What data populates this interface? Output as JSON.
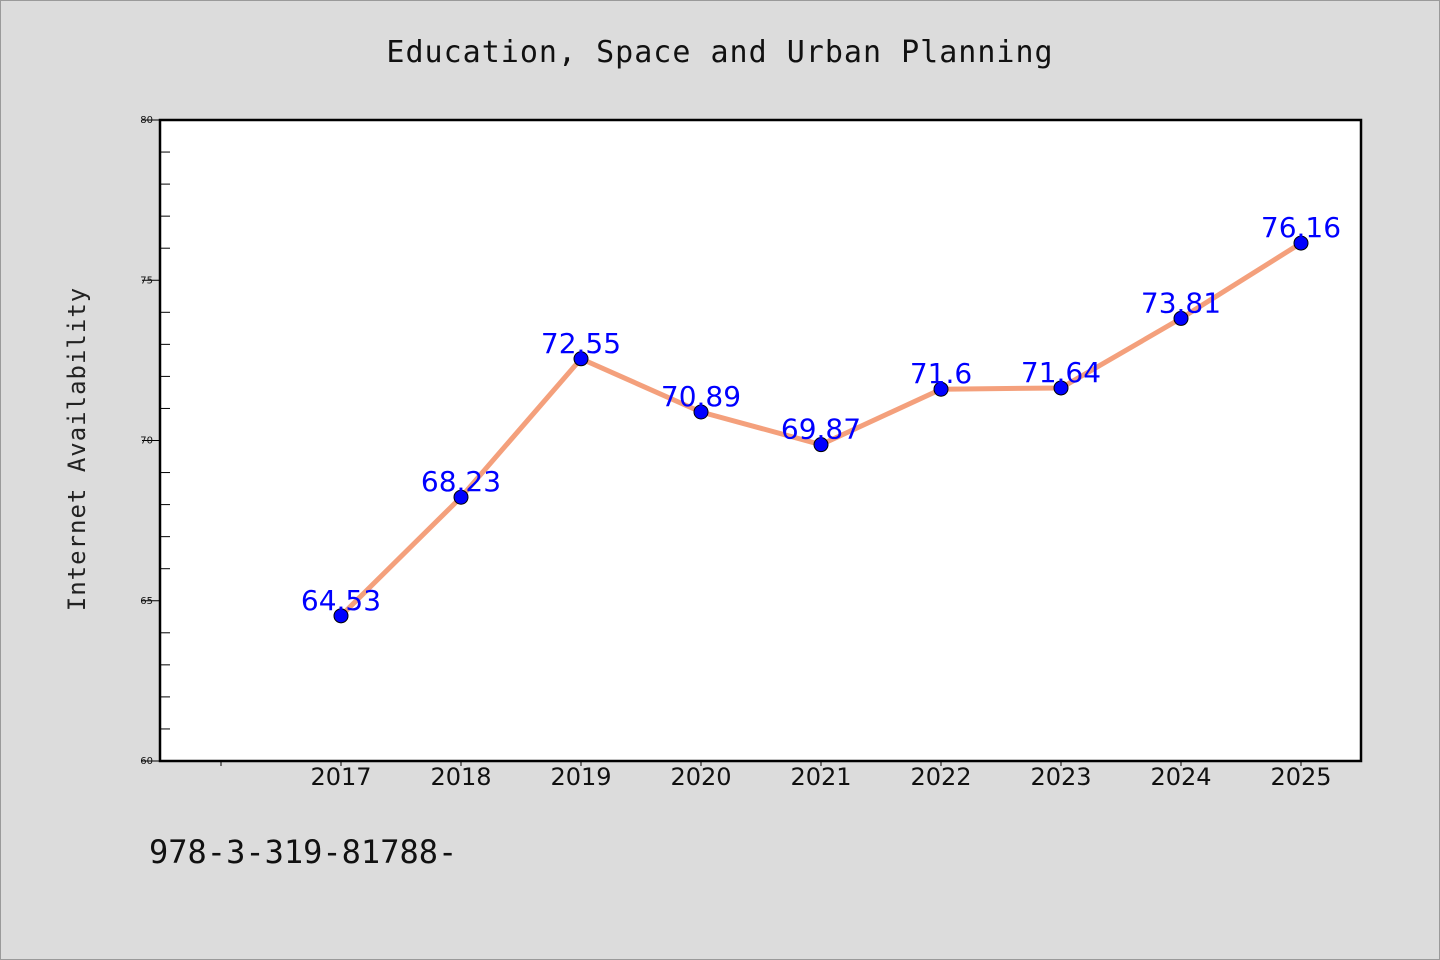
{
  "title": "Education, Space and Urban Planning",
  "footer_text": "978-3-319-81788-",
  "chart_data": {
    "type": "line",
    "title": "Education, Space and Urban Planning",
    "xlabel": "",
    "ylabel": "Internet Availability",
    "categories": [
      "2017",
      "2018",
      "2019",
      "2020",
      "2021",
      "2022",
      "2023",
      "2024",
      "2025"
    ],
    "series": [
      {
        "values": [
          64.53,
          68.23,
          72.55,
          70.89,
          69.87,
          71.6,
          71.64,
          73.81,
          76.16
        ],
        "labels": [
          "64.53",
          "68.23",
          "72.55",
          "70.89",
          "69.87",
          "71.6",
          "71.64",
          "73.81",
          "76.16"
        ],
        "line_color": "#f4a07c",
        "marker_color": "#0000ff"
      }
    ],
    "ylim": [
      60,
      80
    ],
    "yticks": [
      "60",
      "65",
      "70",
      "75",
      "80"
    ],
    "grid": false,
    "legend": "none"
  }
}
